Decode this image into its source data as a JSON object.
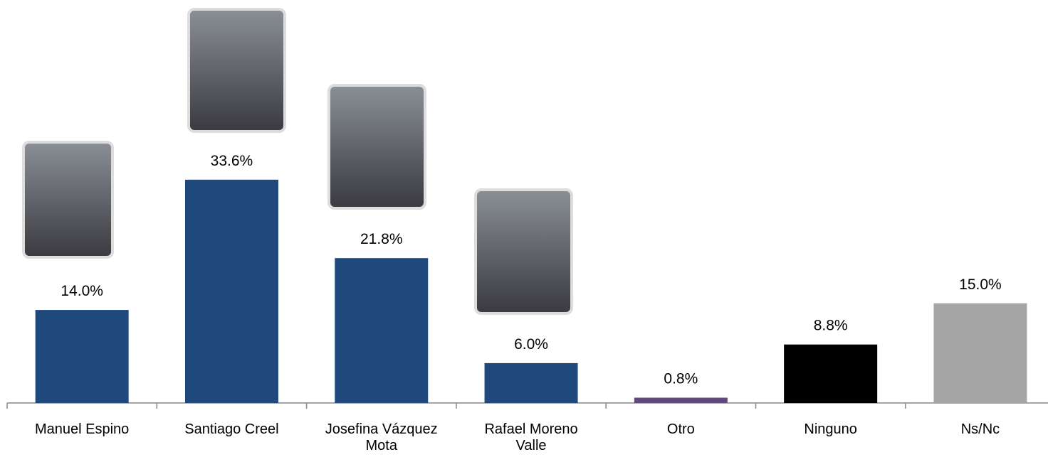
{
  "chart_data": {
    "type": "bar",
    "categories": [
      "Manuel Espino",
      "Santiago Creel",
      "Josefina Vázquez Mota",
      "Rafael Moreno Valle",
      "Otro",
      "Ninguno",
      "Ns/Nc"
    ],
    "values": [
      14.0,
      33.6,
      21.8,
      6.0,
      0.8,
      8.8,
      15.0
    ],
    "value_labels": [
      "14.0%",
      "33.6%",
      "21.8%",
      "6.0%",
      "0.8%",
      "8.8%",
      "15.0%"
    ],
    "colors": [
      "#1f497d",
      "#1f497d",
      "#1f497d",
      "#1f497d",
      "#604a7b",
      "#000000",
      "#a6a6a6"
    ]
  }
}
